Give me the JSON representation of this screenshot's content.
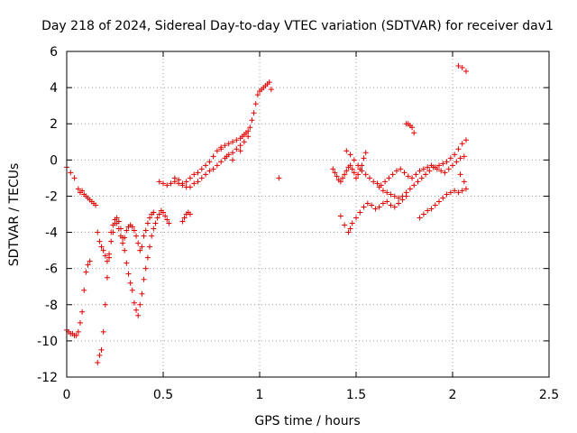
{
  "chart_data": {
    "type": "scatter",
    "title": "Day 218 of 2024, Sidereal Day-to-day VTEC variation (SDTVAR) for receiver dav1",
    "xlabel": "GPS time / hours",
    "ylabel": "SDTVAR / TECUs",
    "xlim": [
      0,
      2.5
    ],
    "ylim": [
      -12,
      6
    ],
    "xticks": [
      0,
      0.5,
      1,
      1.5,
      2,
      2.5
    ],
    "xtick_labels": [
      "0",
      "0.5",
      "1",
      "1.5",
      "2",
      "2.5"
    ],
    "yticks": [
      -12,
      -10,
      -8,
      -6,
      -4,
      -2,
      0,
      2,
      4,
      6
    ],
    "ytick_labels": [
      "-12",
      "-10",
      "-8",
      "-6",
      "-4",
      "-2",
      "0",
      "2",
      "4",
      "6"
    ],
    "grid": true,
    "marker": "+",
    "color": "#e00000",
    "series": [
      {
        "name": "SDTVAR",
        "x": [
          0.0,
          0.01,
          0.02,
          0.03,
          0.04,
          0.05,
          0.06,
          0.07,
          0.08,
          0.09,
          0.1,
          0.11,
          0.12,
          0.0,
          0.02,
          0.04,
          0.06,
          0.07,
          0.08,
          0.09,
          0.1,
          0.11,
          0.12,
          0.13,
          0.14,
          0.15,
          0.16,
          0.17,
          0.18,
          0.19,
          0.2,
          0.21,
          0.22,
          0.23,
          0.24,
          0.25,
          0.26,
          0.27,
          0.28,
          0.29,
          0.3,
          0.31,
          0.32,
          0.33,
          0.34,
          0.35,
          0.36,
          0.37,
          0.38,
          0.39,
          0.4,
          0.41,
          0.42,
          0.43,
          0.44,
          0.45,
          0.16,
          0.17,
          0.18,
          0.19,
          0.2,
          0.21,
          0.22,
          0.23,
          0.24,
          0.25,
          0.26,
          0.27,
          0.28,
          0.29,
          0.3,
          0.31,
          0.32,
          0.33,
          0.34,
          0.35,
          0.36,
          0.37,
          0.38,
          0.39,
          0.4,
          0.41,
          0.42,
          0.43,
          0.44,
          0.45,
          0.46,
          0.47,
          0.48,
          0.49,
          0.5,
          0.51,
          0.52,
          0.53,
          0.48,
          0.5,
          0.52,
          0.54,
          0.56,
          0.58,
          0.6,
          0.62,
          0.64,
          0.66,
          0.68,
          0.7,
          0.72,
          0.74,
          0.76,
          0.78,
          0.8,
          0.82,
          0.84,
          0.86,
          0.88,
          0.9,
          0.92,
          0.94,
          0.56,
          0.58,
          0.6,
          0.62,
          0.64,
          0.66,
          0.68,
          0.7,
          0.72,
          0.74,
          0.76,
          0.78,
          0.8,
          0.82,
          0.84,
          0.86,
          0.88,
          0.9,
          0.91,
          0.92,
          0.93,
          0.94,
          0.95,
          0.96,
          0.97,
          0.98,
          0.99,
          1.0,
          1.01,
          1.02,
          1.03,
          1.04,
          1.05,
          1.06,
          0.6,
          0.61,
          0.62,
          0.63,
          0.64,
          0.8,
          0.83,
          0.86,
          0.9,
          1.1,
          1.38,
          1.39,
          1.4,
          1.41,
          1.42,
          1.43,
          1.44,
          1.45,
          1.46,
          1.47,
          1.48,
          1.49,
          1.5,
          1.51,
          1.52,
          1.53,
          1.54,
          1.55,
          1.42,
          1.44,
          1.46,
          1.47,
          1.48,
          1.5,
          1.52,
          1.54,
          1.56,
          1.58,
          1.6,
          1.62,
          1.64,
          1.66,
          1.68,
          1.7,
          1.72,
          1.74,
          1.76,
          1.45,
          1.47,
          1.49,
          1.51,
          1.53,
          1.55,
          1.57,
          1.59,
          1.61,
          1.63,
          1.65,
          1.67,
          1.69,
          1.71,
          1.73,
          1.75,
          1.77,
          1.79,
          1.81,
          1.83,
          1.85,
          1.87,
          1.89,
          1.91,
          1.93,
          1.95,
          1.97,
          1.99,
          2.01,
          2.03,
          2.05,
          2.07,
          1.62,
          1.64,
          1.66,
          1.68,
          1.7,
          1.72,
          1.74,
          1.76,
          1.78,
          1.8,
          1.82,
          1.84,
          1.86,
          1.88,
          1.9,
          1.92,
          1.94,
          1.96,
          1.98,
          2.0,
          2.02,
          2.04,
          2.06,
          1.76,
          1.77,
          1.78,
          1.79,
          1.8,
          1.83,
          1.85,
          1.87,
          1.89,
          1.91,
          1.93,
          1.95,
          1.97,
          1.99,
          2.01,
          2.03,
          2.05,
          2.07,
          2.03,
          2.05,
          2.07,
          2.04,
          2.06
        ],
        "y": [
          -9.4,
          -9.5,
          -9.6,
          -9.6,
          -9.7,
          -9.7,
          -9.5,
          -9.0,
          -8.4,
          -7.2,
          -6.2,
          -5.8,
          -5.6,
          -0.4,
          -0.7,
          -1.0,
          -1.6,
          -1.8,
          -1.7,
          -1.9,
          -2.0,
          -2.1,
          -2.2,
          -2.3,
          -2.4,
          -2.5,
          -4.0,
          -4.5,
          -4.8,
          -5.0,
          -5.3,
          -5.6,
          -5.4,
          -4.0,
          -3.6,
          -3.3,
          -3.5,
          -3.8,
          -4.2,
          -4.6,
          -4.3,
          -3.9,
          -3.7,
          -3.6,
          -3.7,
          -3.9,
          -4.2,
          -4.6,
          -5.0,
          -4.8,
          -4.2,
          -3.9,
          -3.5,
          -3.2,
          -3.0,
          -2.9,
          -11.2,
          -10.8,
          -10.5,
          -9.5,
          -8.0,
          -6.5,
          -5.2,
          -4.5,
          -4.0,
          -3.5,
          -3.2,
          -3.4,
          -3.8,
          -4.3,
          -5.0,
          -5.7,
          -6.3,
          -6.8,
          -7.2,
          -7.9,
          -8.3,
          -8.6,
          -8.0,
          -7.4,
          -6.6,
          -6.0,
          -5.4,
          -4.8,
          -4.2,
          -3.8,
          -3.5,
          -3.2,
          -3.0,
          -2.8,
          -2.9,
          -3.1,
          -3.3,
          -3.5,
          -1.2,
          -1.3,
          -1.4,
          -1.3,
          -1.2,
          -1.3,
          -1.4,
          -1.5,
          -1.5,
          -1.3,
          -1.2,
          -1.0,
          -0.8,
          -0.6,
          -0.5,
          -0.3,
          -0.1,
          0.1,
          0.3,
          0.4,
          0.6,
          0.8,
          1.0,
          1.3,
          -1.0,
          -1.1,
          -1.3,
          -1.2,
          -1.0,
          -0.8,
          -0.7,
          -0.5,
          -0.3,
          -0.1,
          0.2,
          0.5,
          0.7,
          0.8,
          0.9,
          1.0,
          1.1,
          1.2,
          1.3,
          1.4,
          1.5,
          1.6,
          1.8,
          2.2,
          2.6,
          3.1,
          3.6,
          3.8,
          3.9,
          4.0,
          4.1,
          4.2,
          4.3,
          3.9,
          -3.4,
          -3.2,
          -3.0,
          -2.9,
          -3.0,
          0.6,
          0.2,
          0.0,
          0.5,
          -1.0,
          -0.5,
          -0.7,
          -0.9,
          -1.1,
          -1.2,
          -1.0,
          -0.8,
          -0.6,
          -0.4,
          -0.3,
          -0.5,
          -0.7,
          -1.0,
          -0.8,
          -0.5,
          -0.3,
          0.1,
          0.4,
          -3.1,
          -3.6,
          -4.0,
          -3.8,
          -3.5,
          -3.2,
          -2.9,
          -2.6,
          -2.4,
          -2.5,
          -2.7,
          -2.6,
          -2.4,
          -2.3,
          -2.5,
          -2.6,
          -2.4,
          -2.2,
          -2.0,
          0.5,
          0.3,
          0.0,
          -0.3,
          -0.6,
          -0.8,
          -1.0,
          -1.2,
          -1.3,
          -1.4,
          -1.2,
          -1.0,
          -0.8,
          -0.6,
          -0.5,
          -0.7,
          -0.9,
          -1.0,
          -0.8,
          -0.6,
          -0.5,
          -0.4,
          -0.3,
          -0.4,
          -0.3,
          -0.2,
          -0.1,
          0.1,
          0.3,
          0.6,
          0.9,
          1.1,
          -1.5,
          -1.7,
          -1.8,
          -1.9,
          -2.0,
          -2.1,
          -2.0,
          -1.8,
          -1.6,
          -1.4,
          -1.2,
          -1.0,
          -0.8,
          -0.6,
          -0.4,
          -0.5,
          -0.6,
          -0.7,
          -0.5,
          -0.3,
          -0.1,
          0.1,
          0.2,
          2.0,
          2.0,
          1.9,
          1.8,
          1.5,
          -3.2,
          -3.0,
          -2.8,
          -2.7,
          -2.5,
          -2.3,
          -2.1,
          -1.9,
          -1.8,
          -1.7,
          -1.8,
          -1.7,
          -1.6,
          5.2,
          5.1,
          4.9,
          -0.8,
          -1.2
        ]
      }
    ]
  }
}
